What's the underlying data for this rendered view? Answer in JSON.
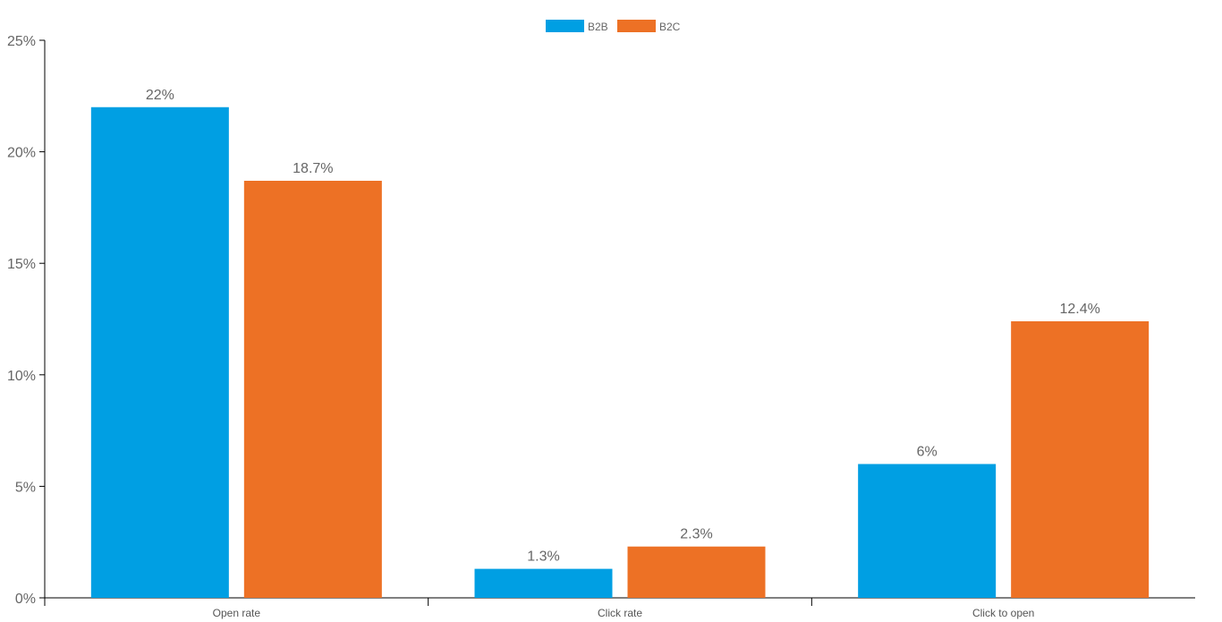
{
  "chart_data": {
    "type": "bar",
    "categories": [
      "Open rate",
      "Click rate",
      "Click to open"
    ],
    "series": [
      {
        "name": "B2B",
        "color": "#009FE3",
        "values": [
          22,
          1.3,
          6
        ],
        "labels": [
          "22%",
          "1.3%",
          "6%"
        ]
      },
      {
        "name": "B2C",
        "color": "#ED7125",
        "values": [
          18.7,
          2.3,
          12.4
        ],
        "labels": [
          "18.7%",
          "2.3%",
          "12.4%"
        ]
      }
    ],
    "ylim": [
      0,
      25
    ],
    "yticks": [
      0,
      5,
      10,
      15,
      20,
      25
    ],
    "ytick_labels": [
      "0%",
      "5%",
      "10%",
      "15%",
      "20%",
      "25%"
    ],
    "legend_position": "top-center",
    "grid": false
  }
}
